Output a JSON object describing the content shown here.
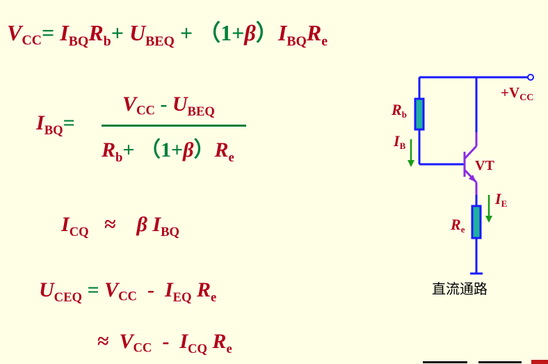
{
  "equations": {
    "kvl": {
      "vcc": "V",
      "vcc_sub": "CC",
      "eq": "=",
      "ib": "I",
      "ib_sub": "BQ",
      "rb": "R",
      "rb_sub": "b",
      "plus1": "+",
      "ube": "U",
      "ube_sub": "BEQ",
      "plus2": "+",
      "paren": "（1+",
      "beta": "β",
      "paren_close": "）",
      "ib2": "I",
      "ib2_sub": "BQ",
      "re": "R",
      "re_sub": "e"
    },
    "ibq": {
      "lhs": "I",
      "lhs_sub": "BQ",
      "eq": "=",
      "num_vcc": "V",
      "num_vcc_sub": "CC",
      "num_minus": "-",
      "num_ube": "U",
      "num_ube_sub": "BEQ",
      "den_rb": "R",
      "den_rb_sub": "b",
      "den_plus": "+",
      "den_paren": "（1+",
      "den_beta": "β",
      "den_paren_close": "）",
      "den_re": "R",
      "den_re_sub": "e"
    },
    "icq": {
      "lhs": "I",
      "lhs_sub": "CQ",
      "approx": "≈",
      "beta": "β",
      "rhs": "I",
      "rhs_sub": "BQ"
    },
    "uceq": {
      "lhs": "U",
      "lhs_sub": "CEQ",
      "eq": "=",
      "vcc": "V",
      "vcc_sub": "CC",
      "minus": "-",
      "ie": "I",
      "ie_sub": "EQ",
      "re": "R",
      "re_sub": "e"
    },
    "uceq_approx": {
      "approx": "≈",
      "vcc": "V",
      "vcc_sub": "CC",
      "minus": "-",
      "ic": "I",
      "ic_sub": "CQ",
      "re": "R",
      "re_sub": "e"
    }
  },
  "circuit": {
    "supply_label": "+V",
    "supply_sub": "CC",
    "rb_label": "R",
    "rb_sub": "b",
    "ib_label": "I",
    "ib_sub": "B",
    "transistor_label": "VT",
    "ie_label": "I",
    "ie_sub": "E",
    "re_label": "R",
    "re_sub": "e",
    "caption": "直流通路"
  },
  "colors": {
    "background": "#ffffe6",
    "text_red": "#b0001a",
    "operator_green": "#00803a",
    "wire_blue": "#1a1aff",
    "resistor_fill": "#20b0a0",
    "transistor_purple": "#8a2be2",
    "current_arrow": "#1a9a1a"
  }
}
